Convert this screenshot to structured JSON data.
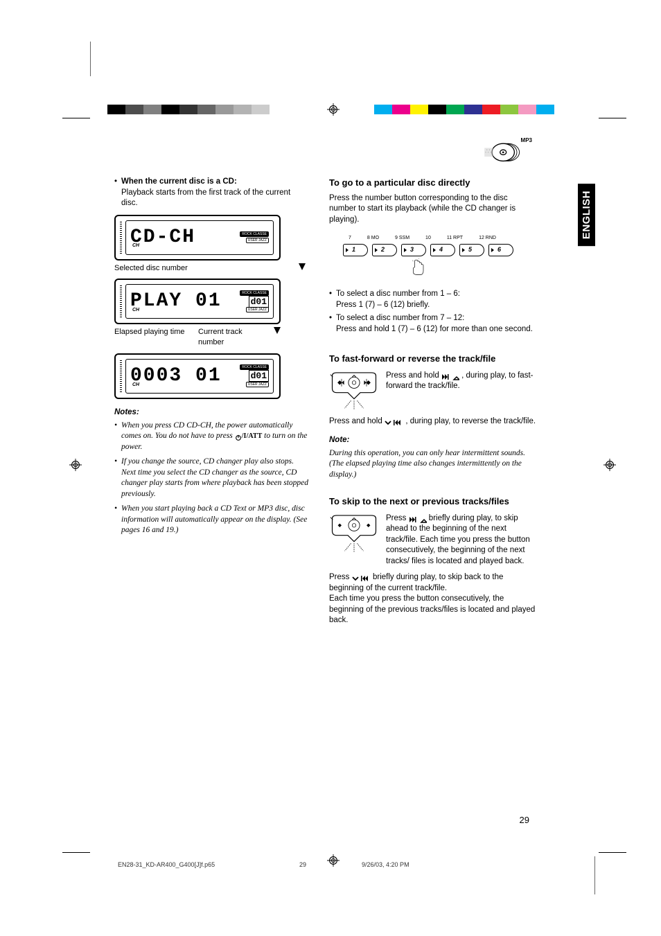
{
  "colorbars": {
    "left": [
      "#000000",
      "#4d4d4d",
      "#808080",
      "#000000",
      "#333333",
      "#666666",
      "#999999",
      "#b3b3b3",
      "#cccccc",
      "#ffffff"
    ],
    "right": [
      "#00aeef",
      "#ec008c",
      "#fff200",
      "#000000",
      "#00a651",
      "#2e3192",
      "#ed1c24",
      "#8dc63f",
      "#f49ac1",
      "#00aeef"
    ]
  },
  "mp3_label": "MP3",
  "lang_tab": "ENGLISH",
  "left_col": {
    "cd_bullet_bold": "When the current disc is a CD:",
    "cd_bullet_body": "Playback starts from the first track of the current disc.",
    "lcd1_text": "CD-CH",
    "caption1": "Selected disc number",
    "lcd2_text": "PLAY  01",
    "lcd2_small": "d01",
    "caption2a": "Elapsed playing time",
    "caption2b": "Current track number",
    "lcd3_text": "0003  01",
    "lcd3_small": "d01",
    "notes_head": "Notes:",
    "note1a": "When you press CD CD-CH, the power automatically comes on. You do not have to press ",
    "note1b": " to turn on the power.",
    "note2": "If you change the source, CD changer play also stops. Next time you select the CD changer as the source, CD changer play starts from where playback has been stopped previously.",
    "note3": "When you start playing back a CD Text or MP3 disc, disc information will automatically appear on the display. (See pages 16 and 19.)",
    "power_att": "/ATT"
  },
  "right_col": {
    "h1": "To go to a particular disc directly",
    "p1": "Press the number button corresponding to the disc number to start its playback (while the CD changer is playing).",
    "btn_top_labels": [
      "7",
      "8 MO",
      "9 SSM",
      "10",
      "11 RPT",
      "12 RND"
    ],
    "btn_nums": [
      "1",
      "2",
      "3",
      "4",
      "5",
      "6"
    ],
    "sel_a1": "To select a disc number from 1 – 6:",
    "sel_a2": "Press 1 (7) – 6 (12) briefly.",
    "sel_b1": "To select a disc number from 7 – 12:",
    "sel_b2": "Press and hold 1 (7) – 6 (12) for more than one second.",
    "h2": "To fast-forward or reverse the track/file",
    "ff_a": "Press and hold ",
    "ff_b": ", during play, to fast-forward the track/file.",
    "rev_a": "Press and hold ",
    "rev_b": ", during play, to reverse the track/file.",
    "note_head": "Note:",
    "note_body": "During this operation, you can only hear intermittent sounds. (The elapsed playing time also changes intermittently on the display.)",
    "h3": "To skip to the next or previous tracks/files",
    "skip_a1": "Press ",
    "skip_a2": " briefly during play, to skip ahead to the beginning of the next track/file. Each time you press the button consecutively, the beginning of the next tracks/ files is located and played back.",
    "skip_b1": "Press ",
    "skip_b2": " briefly during play, to skip back to the beginning of the current track/file.",
    "skip_b3": "Each time you press the button consecutively, the beginning of the previous tracks/files is located and played back."
  },
  "page_number": "29",
  "footer": {
    "file": "EN28-31_KD-AR400_G400[J]f.p65",
    "pg": "29",
    "date": "9/26/03, 4:20 PM"
  },
  "lcd_side": {
    "rock": "ROCK CLASSE",
    "user": "USER  JAZZ",
    "ch": "CH"
  }
}
